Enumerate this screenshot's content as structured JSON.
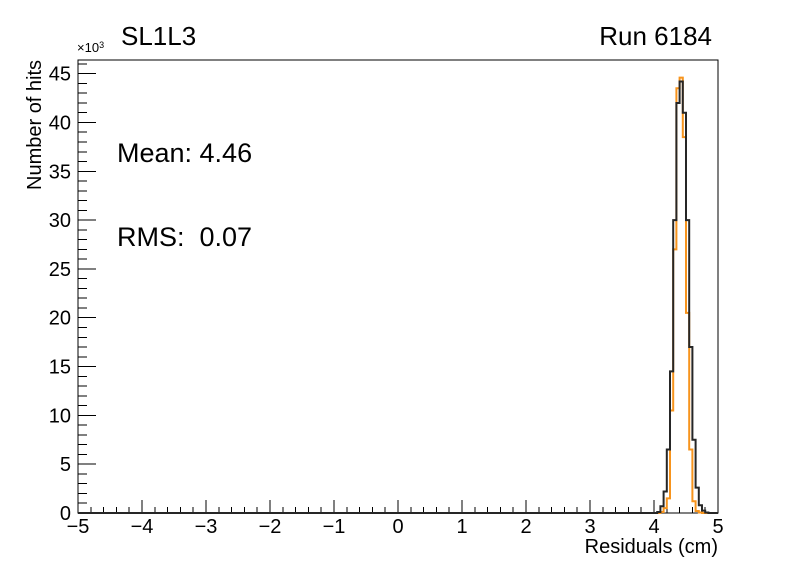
{
  "header": {
    "title": "SL1L3",
    "run": "Run 6184"
  },
  "stats": {
    "mean_text": "Mean: 4.46",
    "rms_text": "RMS:  0.07"
  },
  "colors": {
    "background": "#ffffff",
    "axis": "#000000",
    "hist_orange": "#f7941d",
    "hist_black": "#262626",
    "text": "#000000"
  },
  "chart_data": {
    "type": "bar",
    "subtype": "step-histogram",
    "title": "SL1L3",
    "annotations": [
      "Run 6184",
      "Mean: 4.46",
      "RMS:  0.07"
    ],
    "stats_values": {
      "mean": 4.46,
      "rms": 0.07
    },
    "xlabel": "Residuals (cm)",
    "ylabel": "Number of hits",
    "y_scale_factor_text": "×10",
    "y_scale_exponent_text": "3",
    "values_in": "thousands of hits",
    "xlim": [
      -5,
      5
    ],
    "ylim": [
      0,
      46.4
    ],
    "grid": false,
    "legend": "none",
    "x_major_ticks": [
      -5,
      -4,
      -3,
      -2,
      -1,
      0,
      1,
      2,
      3,
      4,
      5
    ],
    "x_tick_labels": [
      "−5",
      "−4",
      "−3",
      "−2",
      "−1",
      "0",
      "1",
      "2",
      "3",
      "4",
      "5"
    ],
    "x_minor_step": 0.2,
    "y_major_ticks": [
      0,
      5,
      10,
      15,
      20,
      25,
      30,
      35,
      40,
      45
    ],
    "y_tick_labels": [
      "0",
      "5",
      "10",
      "15",
      "20",
      "25",
      "30",
      "35",
      "40",
      "45"
    ],
    "y_minor_step": 1,
    "series": [
      {
        "name": "residuals-histogram-orange",
        "color": "#f7941d",
        "line_width": 2,
        "bin_width": 0.05,
        "bins": [
          [
            4.1,
            0.1
          ],
          [
            4.15,
            0.5
          ],
          [
            4.2,
            1.5
          ],
          [
            4.25,
            10.5
          ],
          [
            4.3,
            27.0
          ],
          [
            4.35,
            43.5
          ],
          [
            4.4,
            44.6
          ],
          [
            4.45,
            38.5
          ],
          [
            4.5,
            20.5
          ],
          [
            4.55,
            6.5
          ],
          [
            4.6,
            1.2
          ],
          [
            4.65,
            0.2
          ],
          [
            4.7,
            0.05
          ]
        ]
      },
      {
        "name": "residuals-histogram-black",
        "color": "#262626",
        "line_width": 2,
        "bin_width": 0.05,
        "bins": [
          [
            4.05,
            0.1
          ],
          [
            4.1,
            0.7
          ],
          [
            4.15,
            2.2
          ],
          [
            4.2,
            6.5
          ],
          [
            4.25,
            14.5
          ],
          [
            4.3,
            30.0
          ],
          [
            4.35,
            42.0
          ],
          [
            4.4,
            44.2
          ],
          [
            4.45,
            41.0
          ],
          [
            4.5,
            30.0
          ],
          [
            4.55,
            17.0
          ],
          [
            4.6,
            7.5
          ],
          [
            4.65,
            2.6
          ],
          [
            4.7,
            0.8
          ],
          [
            4.75,
            0.25
          ],
          [
            4.8,
            0.05
          ]
        ]
      }
    ]
  }
}
